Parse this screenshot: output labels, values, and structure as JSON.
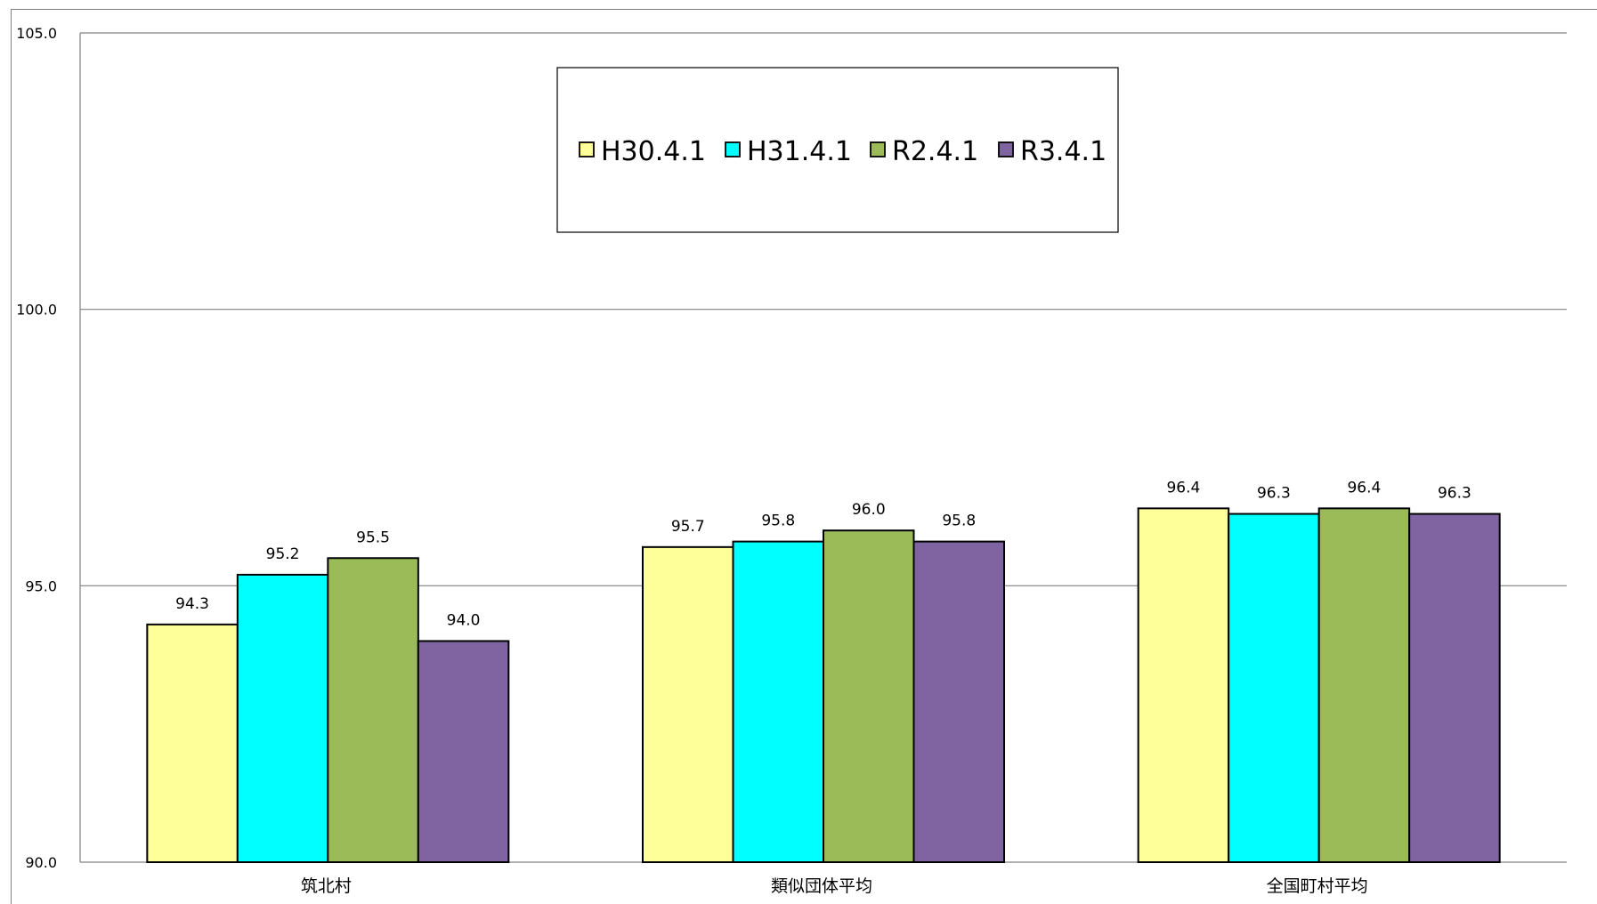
{
  "chart_data": {
    "type": "bar",
    "title": "",
    "xlabel": "",
    "ylabel": "",
    "ylim": [
      90.0,
      105.0
    ],
    "yticks": [
      "90.0",
      "95.0",
      "100.0",
      "105.0"
    ],
    "grid": true,
    "legend_position": "top-center",
    "categories": [
      "筑北村",
      "類似団体平均",
      "全国町村平均"
    ],
    "series": [
      {
        "name": "H30.4.1",
        "color": "#FFFF99",
        "values": [
          94.3,
          95.7,
          96.4
        ]
      },
      {
        "name": "H31.4.1",
        "color": "#00FFFF",
        "values": [
          95.2,
          95.8,
          96.3
        ]
      },
      {
        "name": "R2.4.1",
        "color": "#9BBB59",
        "values": [
          95.5,
          96.0,
          96.4
        ]
      },
      {
        "name": "R3.4.1",
        "color": "#8064A2",
        "values": [
          94.0,
          95.8,
          96.3
        ]
      }
    ]
  }
}
